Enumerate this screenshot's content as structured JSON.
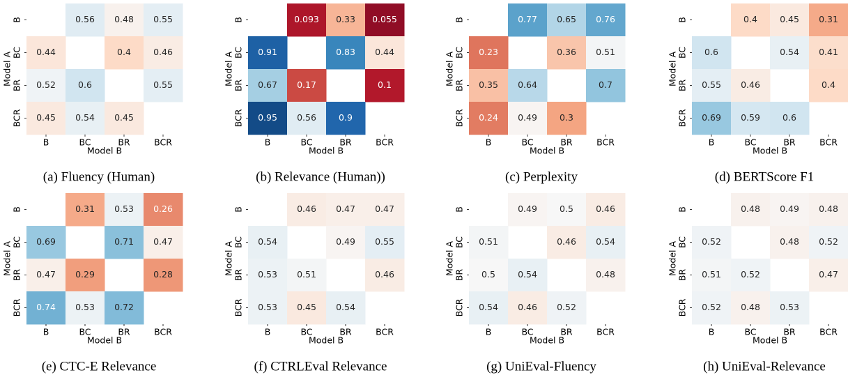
{
  "chart_data": [
    {
      "type": "heatmap",
      "title": "(a) Fluency (Human)",
      "x_label": "Model B",
      "y_label": "Model A",
      "x_categories": [
        "B",
        "BC",
        "BR",
        "BCR"
      ],
      "y_categories": [
        "B",
        "BC",
        "BR",
        "BCR"
      ],
      "colormap": "RdBu",
      "colorlim": [
        0,
        1
      ],
      "values": [
        [
          null,
          0.56,
          0.48,
          0.55
        ],
        [
          0.44,
          null,
          0.4,
          0.46
        ],
        [
          0.52,
          0.6,
          null,
          0.55
        ],
        [
          0.45,
          0.54,
          0.45,
          null
        ]
      ]
    },
    {
      "type": "heatmap",
      "title": "(b) Relevance (Human))",
      "x_label": "Model B",
      "y_label": "Model A",
      "x_categories": [
        "B",
        "BC",
        "BR",
        "BCR"
      ],
      "y_categories": [
        "B",
        "BC",
        "BR",
        "BCR"
      ],
      "colormap": "RdBu",
      "colorlim": [
        0,
        1
      ],
      "values": [
        [
          null,
          0.093,
          0.33,
          0.055
        ],
        [
          0.91,
          null,
          0.83,
          0.44
        ],
        [
          0.67,
          0.17,
          null,
          0.1
        ],
        [
          0.95,
          0.56,
          0.9,
          null
        ]
      ]
    },
    {
      "type": "heatmap",
      "title": "(c) Perplexity",
      "x_label": "Model B",
      "y_label": "Model A",
      "x_categories": [
        "B",
        "BC",
        "BR",
        "BCR"
      ],
      "y_categories": [
        "B",
        "BC",
        "BR",
        "BCR"
      ],
      "colormap": "RdBu",
      "colorlim": [
        0,
        1
      ],
      "values": [
        [
          null,
          0.77,
          0.65,
          0.76
        ],
        [
          0.23,
          null,
          0.36,
          0.51
        ],
        [
          0.35,
          0.64,
          null,
          0.7
        ],
        [
          0.24,
          0.49,
          0.3,
          null
        ]
      ]
    },
    {
      "type": "heatmap",
      "title": "(d) BERTScore F1",
      "x_label": "Model B",
      "y_label": "Model A",
      "x_categories": [
        "B",
        "BC",
        "BR",
        "BCR"
      ],
      "y_categories": [
        "B",
        "BC",
        "BR",
        "BCR"
      ],
      "colormap": "RdBu",
      "colorlim": [
        0,
        1
      ],
      "values": [
        [
          null,
          0.4,
          0.45,
          0.31
        ],
        [
          0.6,
          null,
          0.54,
          0.41
        ],
        [
          0.55,
          0.46,
          null,
          0.4
        ],
        [
          0.69,
          0.59,
          0.6,
          null
        ]
      ]
    },
    {
      "type": "heatmap",
      "title": "(e) CTC-E Relevance",
      "x_label": "Model B",
      "y_label": "Model A",
      "x_categories": [
        "B",
        "BC",
        "BR",
        "BCR"
      ],
      "y_categories": [
        "B",
        "BC",
        "BR",
        "BCR"
      ],
      "colormap": "RdBu",
      "colorlim": [
        0,
        1
      ],
      "values": [
        [
          null,
          0.31,
          0.53,
          0.26
        ],
        [
          0.69,
          null,
          0.71,
          0.47
        ],
        [
          0.47,
          0.29,
          null,
          0.28
        ],
        [
          0.74,
          0.53,
          0.72,
          null
        ]
      ]
    },
    {
      "type": "heatmap",
      "title": "(f) CTRLEval Relevance",
      "x_label": "Model B",
      "y_label": "Model A",
      "x_categories": [
        "B",
        "BC",
        "BR",
        "BCR"
      ],
      "y_categories": [
        "B",
        "BC",
        "BR",
        "BCR"
      ],
      "colormap": "RdBu",
      "colorlim": [
        0,
        1
      ],
      "values": [
        [
          null,
          0.46,
          0.47,
          0.47
        ],
        [
          0.54,
          null,
          0.49,
          0.55
        ],
        [
          0.53,
          0.51,
          null,
          0.46
        ],
        [
          0.53,
          0.45,
          0.54,
          null
        ]
      ]
    },
    {
      "type": "heatmap",
      "title": "(g) UniEval-Fluency",
      "x_label": "Model B",
      "y_label": "Model A",
      "x_categories": [
        "B",
        "BC",
        "BR",
        "BCR"
      ],
      "y_categories": [
        "B",
        "BC",
        "BR",
        "BCR"
      ],
      "colormap": "RdBu",
      "colorlim": [
        0,
        1
      ],
      "values": [
        [
          null,
          0.49,
          0.5,
          0.46
        ],
        [
          0.51,
          null,
          0.46,
          0.54
        ],
        [
          0.5,
          0.54,
          null,
          0.48
        ],
        [
          0.54,
          0.46,
          0.52,
          null
        ]
      ]
    },
    {
      "type": "heatmap",
      "title": "(h) UniEval-Relevance",
      "x_label": "Model B",
      "y_label": "Model A",
      "x_categories": [
        "B",
        "BC",
        "BR",
        "BCR"
      ],
      "y_categories": [
        "B",
        "BC",
        "BR",
        "BCR"
      ],
      "colormap": "RdBu",
      "colorlim": [
        0,
        1
      ],
      "values": [
        [
          null,
          0.48,
          0.49,
          0.48
        ],
        [
          0.52,
          null,
          0.48,
          0.52
        ],
        [
          0.51,
          0.52,
          null,
          0.47
        ],
        [
          0.52,
          0.48,
          0.53,
          null
        ]
      ]
    }
  ]
}
